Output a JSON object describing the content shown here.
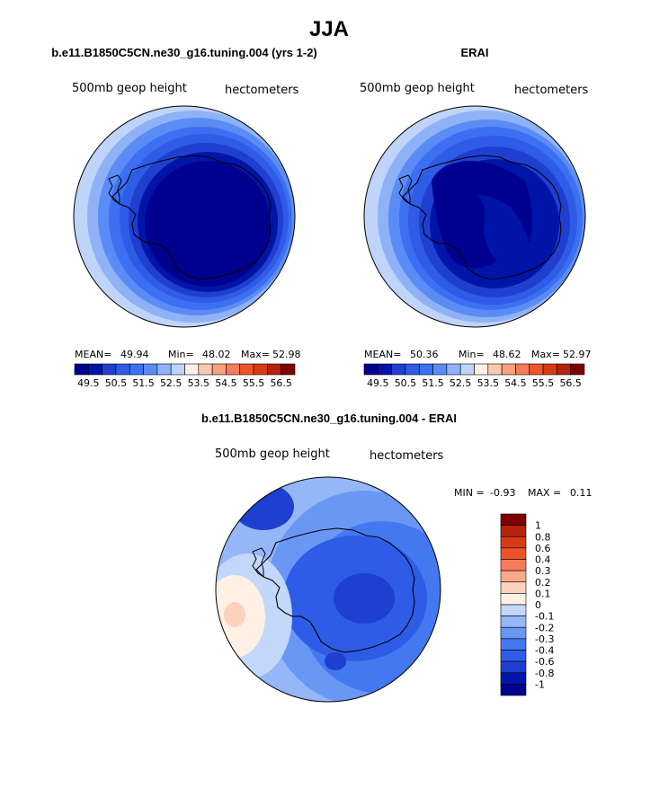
{
  "figure": {
    "title": "JJA"
  },
  "chart_data": [
    {
      "type": "heatmap",
      "title": "b.e11.B1850C5CN.ne30_g16.tuning.004 (yrs 1-2)",
      "field_label": "500mb geop height",
      "units": "hectometers",
      "stats": {
        "mean_label": "MEAN=",
        "mean": "49.94",
        "min_label": "Min=",
        "min": "48.02",
        "max_label": "Max=",
        "max": "52.98"
      },
      "projection": "polar stereographic, south pole",
      "colorbar": {
        "colors": [
          "#00008f",
          "#0015a8",
          "#1f3fd0",
          "#2e5ce6",
          "#3d6ff2",
          "#5b8cf5",
          "#8fb2f7",
          "#bfd4f9",
          "#fff0e6",
          "#fcc9b0",
          "#f9a07f",
          "#f57c5a",
          "#ef5428",
          "#d83a14",
          "#b5230c",
          "#7f0000"
        ],
        "tick_labels": [
          "49.5",
          "50.5",
          "51.5",
          "52.5",
          "53.5",
          "54.5",
          "55.5",
          "56.5"
        ],
        "orientation": "horizontal"
      },
      "contour_levels_shown": [
        48.5,
        49.0,
        49.5,
        50.0,
        50.5,
        51.0,
        51.5,
        52.0,
        52.5
      ]
    },
    {
      "type": "heatmap",
      "title": "ERAI",
      "field_label": "500mb geop height",
      "units": "hectometers",
      "stats": {
        "mean_label": "MEAN=",
        "mean": "50.36",
        "min_label": "Min=",
        "min": "48.62",
        "max_label": "Max=",
        "max": "52.97"
      },
      "projection": "polar stereographic, south pole",
      "colorbar": {
        "colors": [
          "#00008f",
          "#0015a8",
          "#1f3fd0",
          "#2e5ce6",
          "#3d6ff2",
          "#5b8cf5",
          "#8fb2f7",
          "#bfd4f9",
          "#fff0e6",
          "#fcc9b0",
          "#f9a07f",
          "#f57c5a",
          "#ef5428",
          "#d83a14",
          "#b5230c",
          "#7f0000"
        ],
        "tick_labels": [
          "49.5",
          "50.5",
          "51.5",
          "52.5",
          "53.5",
          "54.5",
          "55.5",
          "56.5"
        ],
        "orientation": "horizontal"
      },
      "contour_levels_shown": [
        48.5,
        49.0,
        49.5,
        50.0,
        50.5,
        51.0,
        51.5,
        52.0,
        52.5
      ]
    },
    {
      "type": "heatmap",
      "title": "b.e11.B1850C5CN.ne30_g16.tuning.004 - ERAI",
      "field_label": "500mb geop height",
      "units": "hectometers",
      "stats": {
        "min_label": "MIN =",
        "min": "-0.93",
        "max_label": "MAX =",
        "max": "0.11"
      },
      "projection": "polar stereographic, south pole",
      "colorbar": {
        "colors": [
          "#00008f",
          "#0015a8",
          "#1f3fd0",
          "#2e5ce6",
          "#4478f0",
          "#6a97f4",
          "#95b6f7",
          "#c2d7fa",
          "#fff0e6",
          "#fcd2bd",
          "#f9a988",
          "#f57c5a",
          "#ef5428",
          "#d83a14",
          "#b5230c",
          "#7f0000"
        ],
        "tick_labels": [
          "1",
          "0.8",
          "0.6",
          "0.4",
          "0.3",
          "0.2",
          "0.1",
          "0",
          "-0.1",
          "-0.2",
          "-0.3",
          "-0.4",
          "-0.6",
          "-0.8",
          "-1"
        ],
        "orientation": "vertical"
      }
    }
  ]
}
